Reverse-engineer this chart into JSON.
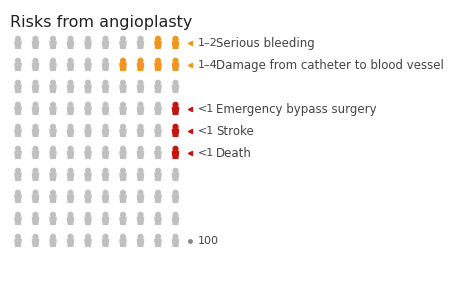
{
  "title": "Risks from angioplasty",
  "background_color": "#ffffff",
  "title_fontsize": 11.5,
  "title_color": "#222222",
  "rows": [
    {
      "gray": 8,
      "highlight": 2,
      "highlight_color": "#f0961e",
      "dot_color": "#f0961e",
      "label_num": "1–2",
      "label_text": "Serious bleeding"
    },
    {
      "gray": 6,
      "highlight": 4,
      "highlight_color": "#f0961e",
      "dot_color": "#f0961e",
      "label_num": "1–4",
      "label_text": "Damage from catheter to blood vessel"
    },
    {
      "gray": 10,
      "highlight": 0,
      "highlight_color": null,
      "dot_color": null,
      "label_num": null,
      "label_text": null
    },
    {
      "gray": 9,
      "highlight": 1,
      "highlight_color": "#c0170f",
      "dot_color": "#c0170f",
      "label_num": "<1",
      "label_text": "Emergency bypass surgery"
    },
    {
      "gray": 9,
      "highlight": 1,
      "highlight_color": "#c0170f",
      "dot_color": "#c0170f",
      "label_num": "<1",
      "label_text": "Stroke"
    },
    {
      "gray": 9,
      "highlight": 1,
      "highlight_color": "#c0170f",
      "dot_color": "#c0170f",
      "label_num": "<1",
      "label_text": "Death"
    },
    {
      "gray": 10,
      "highlight": 0,
      "highlight_color": null,
      "dot_color": null,
      "label_num": null,
      "label_text": null
    },
    {
      "gray": 10,
      "highlight": 0,
      "highlight_color": null,
      "dot_color": null,
      "label_num": null,
      "label_text": null
    },
    {
      "gray": 10,
      "highlight": 0,
      "highlight_color": null,
      "dot_color": null,
      "label_num": null,
      "label_text": null
    },
    {
      "gray": 10,
      "highlight": 0,
      "highlight_color": null,
      "dot_color": null,
      "label_num": null,
      "label_text": null,
      "total_label": "100"
    }
  ],
  "gray_color": "#c0c0c0",
  "label_num_fontsize": 8.0,
  "label_text_fontsize": 8.5,
  "label_color": "#444444",
  "icons_per_row": 10
}
